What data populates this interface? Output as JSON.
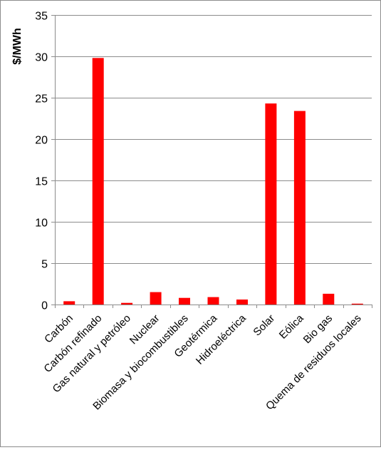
{
  "chart_data": {
    "type": "bar",
    "title": "",
    "xlabel": "",
    "ylabel": "$/MWh",
    "ylim": [
      0,
      35
    ],
    "yticks": [
      0,
      5,
      10,
      15,
      20,
      25,
      30,
      35
    ],
    "grid": true,
    "legend": "none",
    "bar_color": "#ff0000",
    "categories": [
      "Carbón",
      "Carbón refinado",
      "Gas natural y petróleo",
      "Nuclear",
      "Biomasa y biocombustibles",
      "Geotérmica",
      "Hidroeléctrica",
      "Solar",
      "Eólica",
      "Bio gas",
      "Quema de residuos locales"
    ],
    "values": [
      0.4,
      29.8,
      0.2,
      1.5,
      0.8,
      0.9,
      0.6,
      24.3,
      23.4,
      1.3,
      0.1
    ]
  }
}
